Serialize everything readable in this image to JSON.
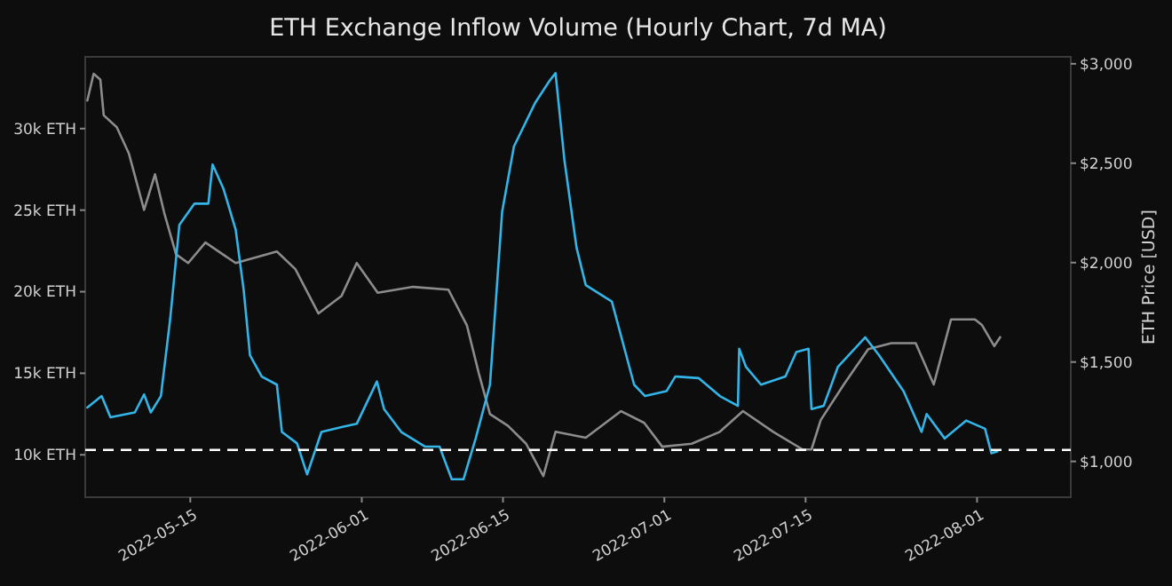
{
  "chart_data": {
    "type": "line",
    "title": "ETH Exchange Inflow Volume (Hourly Chart, 7d MA)",
    "y2label": "ETH Price [USD]",
    "xlim": [
      "2022-05-04T14:00",
      "2022-08-10T07:00"
    ],
    "xticks": [
      "2022-05-15",
      "2022-06-01",
      "2022-06-15",
      "2022-07-01",
      "2022-07-15",
      "2022-08-01"
    ],
    "ylim": [
      7400,
      34400
    ],
    "yticks": [
      {
        "value": 10000,
        "label": "10k ETH"
      },
      {
        "value": 15000,
        "label": "15k ETH"
      },
      {
        "value": 20000,
        "label": "20k ETH"
      },
      {
        "value": 25000,
        "label": "25k ETH"
      },
      {
        "value": 30000,
        "label": "30k ETH"
      }
    ],
    "y2lim": [
      820,
      3035
    ],
    "y2ticks": [
      {
        "value": 1000,
        "label": "$1,000"
      },
      {
        "value": 1500,
        "label": "$1,500"
      },
      {
        "value": 2000,
        "label": "$2,000"
      },
      {
        "value": 2500,
        "label": "$2,500"
      },
      {
        "value": 3000,
        "label": "$3,000"
      }
    ],
    "ref_lines": [
      {
        "axis": "y",
        "value": 10300,
        "color": "#ffffff",
        "line_style": "dashed"
      }
    ],
    "series": [
      {
        "color": "#8c8c8c",
        "axis": "y2",
        "x": [
          "2022-05-04T19:00",
          "2022-05-05T10:00",
          "2022-05-06T02:00",
          "2022-05-06T10:00",
          "2022-05-07T17:00",
          "2022-05-08T22:00",
          "2022-05-10T10:00",
          "2022-05-11T12:00",
          "2022-05-12T10:00",
          "2022-05-13T14:00",
          "2022-05-14T19:00",
          "2022-05-16T12:00",
          "2022-05-19T12:00",
          "2022-05-23T14:00",
          "2022-05-25T10:00",
          "2022-05-27T17:00",
          "2022-05-30T00:00",
          "2022-05-31T12:00",
          "2022-06-02T14:00",
          "2022-06-06T02:00",
          "2022-06-09T14:00",
          "2022-06-11T10:00",
          "2022-06-12T14:00",
          "2022-06-13T17:00",
          "2022-06-15T12:00",
          "2022-06-17T07:00",
          "2022-06-19T00:00",
          "2022-06-20T05:00",
          "2022-06-23T05:00",
          "2022-06-26T17:00",
          "2022-06-29T00:00",
          "2022-06-30T19:00",
          "2022-07-03T17:00",
          "2022-07-06T12:00",
          "2022-07-08T19:00",
          "2022-07-11T19:00",
          "2022-07-14T17:00",
          "2022-07-15T14:00",
          "2022-07-16T12:00",
          "2022-07-18T19:00",
          "2022-07-21T05:00",
          "2022-07-23T12:00",
          "2022-07-25T22:00",
          "2022-07-27T17:00",
          "2022-07-29T10:00",
          "2022-07-31T19:00",
          "2022-08-01T12:00",
          "2022-08-02T17:00",
          "2022-08-03T07:00"
        ],
        "values": [
          2815,
          2950,
          2920,
          2741,
          2681,
          2548,
          2265,
          2444,
          2250,
          2042,
          1998,
          2101,
          1998,
          2056,
          1967,
          1744,
          1833,
          1998,
          1848,
          1878,
          1864,
          1685,
          1447,
          1238,
          1179,
          1089,
          926,
          1149,
          1119,
          1253,
          1194,
          1074,
          1089,
          1149,
          1253,
          1149,
          1060,
          1060,
          1208,
          1387,
          1565,
          1595,
          1595,
          1387,
          1714,
          1714,
          1685,
          1580,
          1625
        ]
      },
      {
        "color": "#33b5e8",
        "x": [
          "2022-05-04T19:00",
          "2022-05-06T05:00",
          "2022-05-07T02:00",
          "2022-05-09T12:00",
          "2022-05-10T10:00",
          "2022-05-11T02:00",
          "2022-05-12T02:00",
          "2022-05-13T00:00",
          "2022-05-13T22:00",
          "2022-05-15T10:00",
          "2022-05-16T19:00",
          "2022-05-17T05:00",
          "2022-05-18T07:00",
          "2022-05-19T12:00",
          "2022-05-20T07:00",
          "2022-05-20T22:00",
          "2022-05-22T02:00",
          "2022-05-23T14:00",
          "2022-05-24T02:00",
          "2022-05-25T14:00",
          "2022-05-26T14:00",
          "2022-05-28T00:00",
          "2022-05-30T00:00",
          "2022-05-31T12:00",
          "2022-06-02T12:00",
          "2022-06-03T05:00",
          "2022-06-04T22:00",
          "2022-06-07T07:00",
          "2022-06-08T17:00",
          "2022-06-09T22:00",
          "2022-06-11T02:00",
          "2022-06-12T07:00",
          "2022-06-13T17:00",
          "2022-06-14T22:00",
          "2022-06-16T02:00",
          "2022-06-18T05:00",
          "2022-06-19T14:00",
          "2022-06-20T05:00",
          "2022-06-21T02:00",
          "2022-06-22T07:00",
          "2022-06-23T05:00",
          "2022-06-25T19:00",
          "2022-06-28T00:00",
          "2022-06-29T02:00",
          "2022-07-01T05:00",
          "2022-07-02T02:00",
          "2022-07-04T10:00",
          "2022-07-06T12:00",
          "2022-07-08T07:00",
          "2022-07-08T10:00",
          "2022-07-09T02:00",
          "2022-07-10T14:00",
          "2022-07-13T00:00",
          "2022-07-14T02:00",
          "2022-07-15T07:00",
          "2022-07-15T14:00",
          "2022-07-16T19:00",
          "2022-07-18T05:00",
          "2022-07-20T22:00",
          "2022-07-22T07:00",
          "2022-07-24T17:00",
          "2022-07-26T12:00",
          "2022-07-27T00:00",
          "2022-07-28T19:00",
          "2022-07-30T22:00",
          "2022-08-01T19:00",
          "2022-08-02T10:00",
          "2022-08-03T00:00"
        ],
        "values": [
          12900,
          13600,
          12300,
          12600,
          13700,
          12600,
          13600,
          18300,
          24100,
          25400,
          25400,
          27800,
          26300,
          23800,
          20100,
          16100,
          14800,
          14300,
          11400,
          10700,
          8800,
          11400,
          11700,
          11900,
          14500,
          12800,
          11400,
          10500,
          10500,
          8500,
          8500,
          11000,
          14300,
          24900,
          28900,
          31600,
          32900,
          33400,
          28100,
          22700,
          20400,
          19400,
          14300,
          13600,
          13900,
          14800,
          14700,
          13600,
          13000,
          16500,
          15400,
          14300,
          14800,
          16300,
          16500,
          12800,
          13000,
          15400,
          17200,
          16100,
          13900,
          11400,
          12500,
          11000,
          12100,
          11600,
          10100,
          10200
        ]
      }
    ]
  }
}
